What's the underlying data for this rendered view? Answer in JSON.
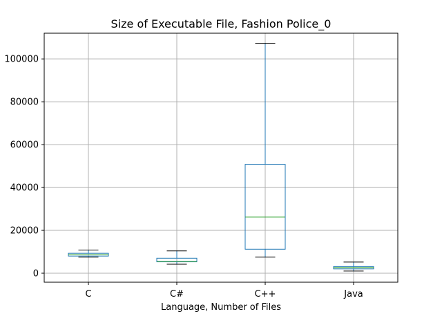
{
  "chart_data": {
    "type": "box",
    "title": "Size of Executable File, Fashion Police_0",
    "xlabel": "Language, Number of Files",
    "ylabel": "",
    "ylim": [
      -4200,
      112000
    ],
    "yticks": [
      0,
      20000,
      40000,
      60000,
      80000,
      100000
    ],
    "ytick_labels": [
      "0",
      "20000",
      "40000",
      "60000",
      "80000",
      "100000"
    ],
    "grid": true,
    "categories": [
      "C",
      "C#",
      "C++",
      "Java"
    ],
    "boxes": [
      {
        "category": "C",
        "whisker_low": 7500,
        "q1": 8000,
        "median": 8600,
        "q3": 9300,
        "whisker_high": 10800
      },
      {
        "category": "C#",
        "whisker_low": 4200,
        "q1": 5300,
        "median": 5500,
        "q3": 7000,
        "whisker_high": 10400
      },
      {
        "category": "C++",
        "whisker_low": 7500,
        "q1": 11200,
        "median": 26200,
        "q3": 50800,
        "whisker_high": 107300
      },
      {
        "category": "Java",
        "whisker_low": 1000,
        "q1": 2000,
        "median": 2600,
        "q3": 3100,
        "whisker_high": 5200
      }
    ],
    "colors": {
      "box": "#1f77b4",
      "median": "#2ca02c",
      "whisker_cap": "#000000",
      "grid": "#b0b0b0"
    }
  }
}
